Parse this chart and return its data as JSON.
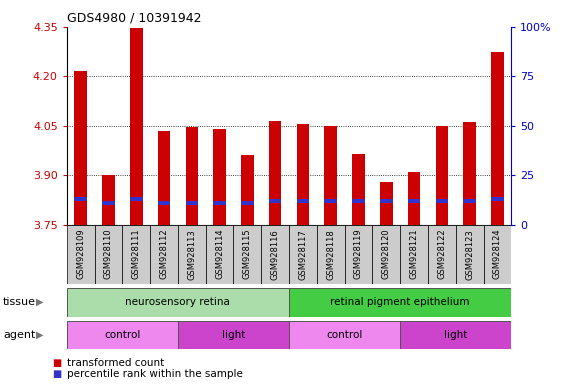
{
  "title": "GDS4980 / 10391942",
  "samples": [
    "GSM928109",
    "GSM928110",
    "GSM928111",
    "GSM928112",
    "GSM928113",
    "GSM928114",
    "GSM928115",
    "GSM928116",
    "GSM928117",
    "GSM928118",
    "GSM928119",
    "GSM928120",
    "GSM928121",
    "GSM928122",
    "GSM928123",
    "GSM928124"
  ],
  "transformed_count": [
    4.215,
    3.9,
    4.348,
    4.035,
    4.045,
    4.04,
    3.96,
    4.065,
    4.055,
    4.05,
    3.965,
    3.88,
    3.91,
    4.05,
    4.06,
    4.275
  ],
  "percentile_rank_pct": [
    13,
    11,
    13,
    11,
    11,
    11,
    11,
    12,
    12,
    12,
    12,
    12,
    12,
    12,
    12,
    13
  ],
  "bar_bottom": 3.75,
  "ylim_left": [
    3.75,
    4.35
  ],
  "ylim_right": [
    0,
    100
  ],
  "yticks_left": [
    3.75,
    3.9,
    4.05,
    4.2,
    4.35
  ],
  "yticks_right": [
    0,
    25,
    50,
    75,
    100
  ],
  "ytick_labels_right": [
    "0",
    "25",
    "50",
    "75",
    "100%"
  ],
  "gridlines": [
    3.9,
    4.05,
    4.2
  ],
  "red_color": "#cc0000",
  "blue_color": "#3333cc",
  "tissue_groups": [
    {
      "label": "neurosensory retina",
      "start": 0,
      "end": 8,
      "color": "#aaddaa"
    },
    {
      "label": "retinal pigment epithelium",
      "start": 8,
      "end": 16,
      "color": "#44cc44"
    }
  ],
  "agent_groups": [
    {
      "label": "control",
      "start": 0,
      "end": 4,
      "color": "#ee88ee"
    },
    {
      "label": "light",
      "start": 4,
      "end": 8,
      "color": "#cc44cc"
    },
    {
      "label": "control",
      "start": 8,
      "end": 12,
      "color": "#ee88ee"
    },
    {
      "label": "light",
      "start": 12,
      "end": 16,
      "color": "#cc44cc"
    }
  ],
  "legend_items": [
    {
      "label": "transformed count",
      "color": "#cc0000"
    },
    {
      "label": "percentile rank within the sample",
      "color": "#3333cc"
    }
  ],
  "bar_width": 0.45,
  "ylabel_left_color": "#cc0000",
  "ylabel_right_color": "#0000cc",
  "tissue_label": "tissue",
  "agent_label": "agent",
  "xtick_bg_color": "#cccccc",
  "plot_bg": "#ffffff"
}
